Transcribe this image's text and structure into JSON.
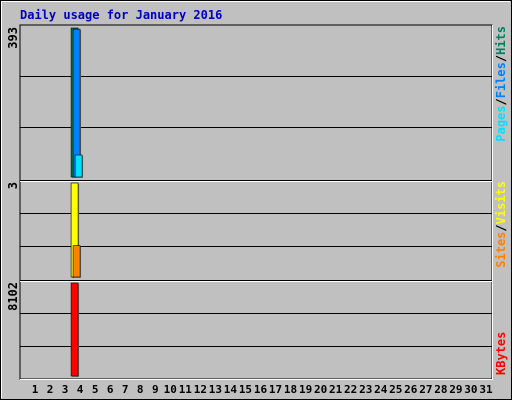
{
  "chart_data": [
    {
      "type": "bar",
      "title": "Daily usage for January 2016",
      "categories": [
        "1",
        "2",
        "3",
        "4",
        "5",
        "6",
        "7",
        "8",
        "9",
        "10",
        "11",
        "12",
        "13",
        "14",
        "15",
        "16",
        "17",
        "18",
        "19",
        "20",
        "21",
        "22",
        "23",
        "24",
        "25",
        "26",
        "27",
        "28",
        "29",
        "30",
        "31"
      ],
      "ymax_label": "393",
      "ylim": [
        0,
        393
      ],
      "legend": [
        {
          "name": "Pages",
          "color": "#00e0ff"
        },
        {
          "name": "/",
          "color": "#000000"
        },
        {
          "name": "Files",
          "color": "#0080ff"
        },
        {
          "name": "/",
          "color": "#000000"
        },
        {
          "name": "Hits",
          "color": "#00805c"
        }
      ],
      "series": [
        {
          "name": "Hits",
          "color": "#00805c",
          "values": [
            0,
            0,
            0,
            393,
            0,
            0,
            0,
            0,
            0,
            0,
            0,
            0,
            0,
            0,
            0,
            0,
            0,
            0,
            0,
            0,
            0,
            0,
            0,
            0,
            0,
            0,
            0,
            0,
            0,
            0,
            0
          ]
        },
        {
          "name": "Files",
          "color": "#0080ff",
          "values": [
            0,
            0,
            0,
            390,
            0,
            0,
            0,
            0,
            0,
            0,
            0,
            0,
            0,
            0,
            0,
            0,
            0,
            0,
            0,
            0,
            0,
            0,
            0,
            0,
            0,
            0,
            0,
            0,
            0,
            0,
            0
          ]
        },
        {
          "name": "Pages",
          "color": "#00e0ff",
          "values": [
            0,
            0,
            0,
            58,
            0,
            0,
            0,
            0,
            0,
            0,
            0,
            0,
            0,
            0,
            0,
            0,
            0,
            0,
            0,
            0,
            0,
            0,
            0,
            0,
            0,
            0,
            0,
            0,
            0,
            0,
            0
          ]
        }
      ]
    },
    {
      "type": "bar",
      "ymax_label": "3",
      "ylim": [
        0,
        3
      ],
      "legend": [
        {
          "name": "Sites",
          "color": "#ff8000"
        },
        {
          "name": "/",
          "color": "#000000"
        },
        {
          "name": "Visits",
          "color": "#ffff00"
        }
      ],
      "series": [
        {
          "name": "Visits",
          "color": "#ffff00",
          "values": [
            0,
            0,
            0,
            3,
            0,
            0,
            0,
            0,
            0,
            0,
            0,
            0,
            0,
            0,
            0,
            0,
            0,
            0,
            0,
            0,
            0,
            0,
            0,
            0,
            0,
            0,
            0,
            0,
            0,
            0,
            0
          ]
        },
        {
          "name": "Sites",
          "color": "#ff8000",
          "values": [
            0,
            0,
            0,
            1,
            0,
            0,
            0,
            0,
            0,
            0,
            0,
            0,
            0,
            0,
            0,
            0,
            0,
            0,
            0,
            0,
            0,
            0,
            0,
            0,
            0,
            0,
            0,
            0,
            0,
            0,
            0
          ]
        }
      ]
    },
    {
      "type": "bar",
      "ymax_label": "8102",
      "ylim": [
        0,
        8102
      ],
      "legend": [
        {
          "name": "KBytes",
          "color": "#ff0000"
        }
      ],
      "series": [
        {
          "name": "KBytes",
          "color": "#ff0000",
          "values": [
            0,
            0,
            0,
            8102,
            0,
            0,
            0,
            0,
            0,
            0,
            0,
            0,
            0,
            0,
            0,
            0,
            0,
            0,
            0,
            0,
            0,
            0,
            0,
            0,
            0,
            0,
            0,
            0,
            0,
            0,
            0
          ]
        }
      ]
    }
  ]
}
